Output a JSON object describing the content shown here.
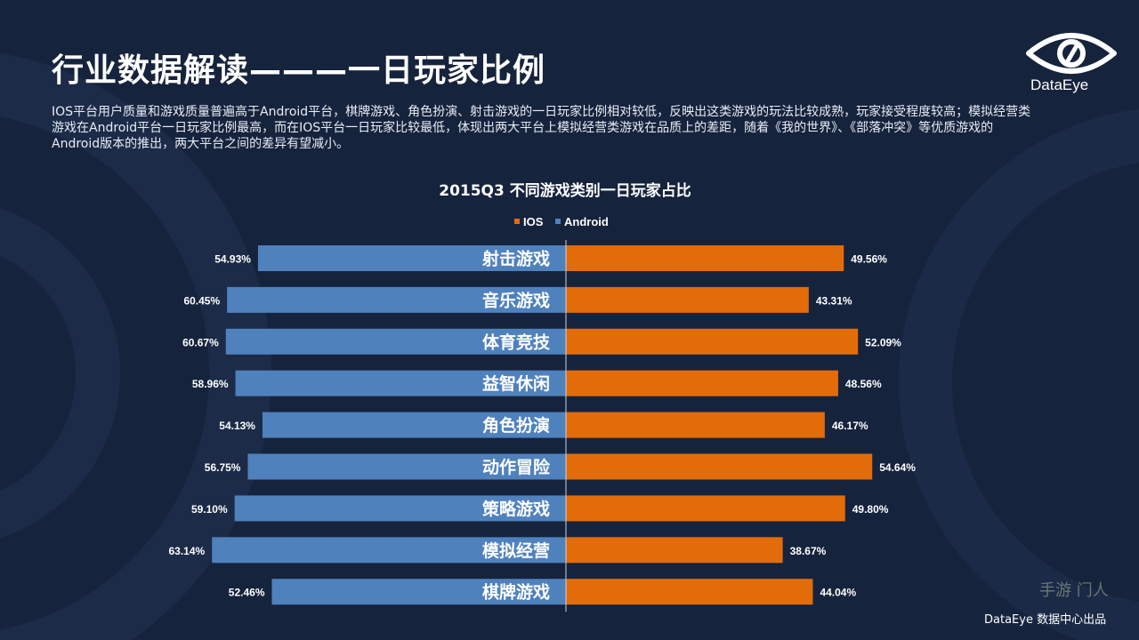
{
  "header": {
    "title": "行业数据解读———一日玩家比例",
    "description": "IOS平台用户质量和游戏质量普遍高于Android平台，棋牌游戏、角色扮演、射击游戏的一日玩家比例相对较低，反映出这类游戏的玩法比较成熟，玩家接受程度较高；模拟经营类游戏在Android平台一日玩家比例最高，而在IOS平台一日玩家比较最低，体现出两大平台上模拟经营类游戏在品质上的差距，随着《我的世界》、《部落冲突》等优质游戏的Android版本的推出，两大平台之间的差异有望减小。"
  },
  "brand": {
    "logo_text": "DataEye",
    "footer": "DataEye 数据中心出品",
    "watermark": "手游 门人"
  },
  "colors": {
    "background": "#16233d",
    "ios": "#e36c0a",
    "android": "#4f81bd"
  },
  "chart_data": {
    "type": "bar",
    "orientation": "horizontal-diverging",
    "title": "2015Q3 不同游戏类别一日玩家占比",
    "legend_position": "top-center",
    "categories": [
      "射击游戏",
      "音乐游戏",
      "体育竞技",
      "益智休闲",
      "角色扮演",
      "动作冒险",
      "策略游戏",
      "模拟经营",
      "棋牌游戏"
    ],
    "series": [
      {
        "name": "IOS",
        "values": [
          49.56,
          43.31,
          52.09,
          48.56,
          46.17,
          54.64,
          49.8,
          38.67,
          44.04
        ],
        "labels": [
          "49.56%",
          "43.31%",
          "52.09%",
          "48.56%",
          "46.17%",
          "54.64%",
          "49.80%",
          "38.67%",
          "44.04%"
        ]
      },
      {
        "name": "Android",
        "values": [
          54.93,
          60.45,
          60.67,
          58.96,
          54.13,
          56.75,
          59.1,
          63.14,
          52.46
        ],
        "labels": [
          "54.93%",
          "60.45%",
          "60.67%",
          "58.96%",
          "54.13%",
          "56.75%",
          "59.10%",
          "63.14%",
          "52.46%"
        ]
      }
    ],
    "unit": "%"
  }
}
